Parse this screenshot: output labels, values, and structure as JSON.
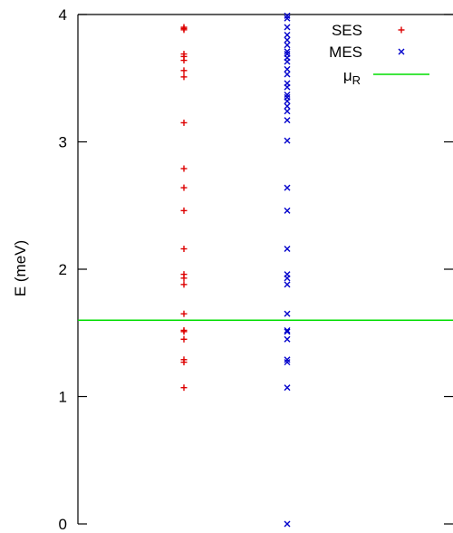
{
  "chart_data": {
    "type": "scatter",
    "title": "",
    "xlabel": "",
    "ylabel": "E (meV)",
    "ylim": [
      0,
      4
    ],
    "yticks": [
      "0",
      "1",
      "2",
      "3",
      "4"
    ],
    "grid": false,
    "legend_position": "top-right",
    "series": [
      {
        "name": "SES",
        "marker": "plus",
        "color": "#dd0000",
        "x": 1,
        "values": [
          1.07,
          1.27,
          1.29,
          1.45,
          1.51,
          1.52,
          1.65,
          1.88,
          1.93,
          1.96,
          2.16,
          2.46,
          2.64,
          2.79,
          3.15,
          3.51,
          3.56,
          3.64,
          3.67,
          3.69,
          3.88,
          3.89,
          3.9
        ]
      },
      {
        "name": "MES",
        "marker": "cross",
        "color": "#0000cc",
        "x": 2,
        "values": [
          0.0,
          1.07,
          1.27,
          1.29,
          1.45,
          1.51,
          1.52,
          1.65,
          1.88,
          1.93,
          1.96,
          2.16,
          2.46,
          2.64,
          3.01,
          3.17,
          3.24,
          3.28,
          3.32,
          3.35,
          3.37,
          3.43,
          3.46,
          3.53,
          3.57,
          3.63,
          3.66,
          3.69,
          3.71,
          3.76,
          3.8,
          3.84,
          3.9,
          3.97,
          3.99
        ]
      },
      {
        "name": "μR",
        "name_main": "μ",
        "name_sub": "R",
        "marker": "line",
        "color": "#00dd00",
        "value": 1.6
      }
    ]
  }
}
